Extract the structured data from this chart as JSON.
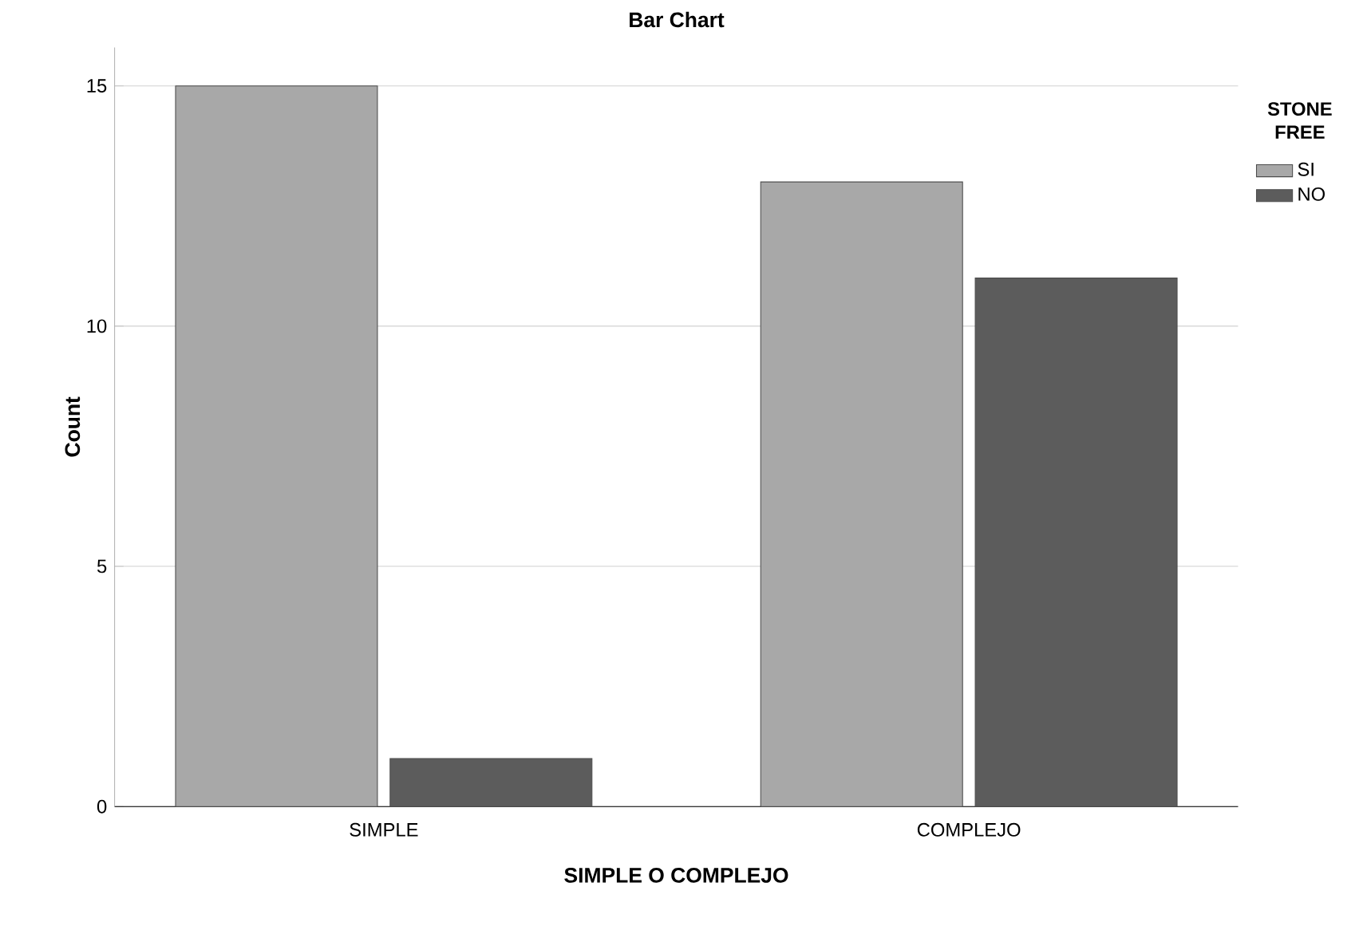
{
  "chart_data": {
    "type": "bar",
    "title": "Bar Chart",
    "xlabel": "SIMPLE O COMPLEJO",
    "ylabel": "Count",
    "categories": [
      "SIMPLE",
      "COMPLEJO"
    ],
    "series": [
      {
        "name": "SI",
        "color": "#a8a8a8",
        "values": [
          15,
          13
        ]
      },
      {
        "name": "NO",
        "color": "#5c5c5c",
        "values": [
          1,
          11
        ]
      }
    ],
    "legend_title": "STONE FREE",
    "legend": "top right",
    "ylim": [
      0,
      15.8
    ],
    "yticks": [
      0,
      5,
      10,
      15
    ],
    "grid": "y"
  }
}
